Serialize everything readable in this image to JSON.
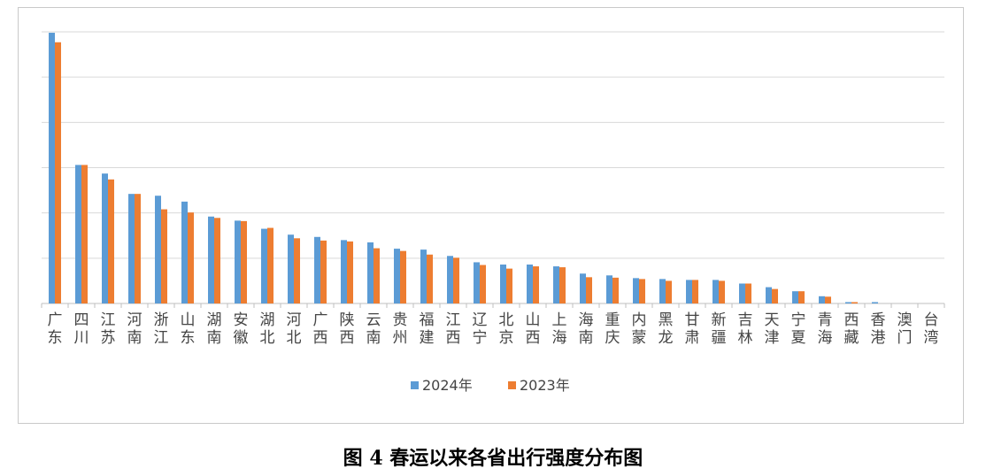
{
  "caption": "图 4  春运以来各省出行强度分布图",
  "chart_data": {
    "type": "bar",
    "title": "",
    "xlabel": "",
    "ylabel": "",
    "ylim": [
      0,
      6
    ],
    "grid": true,
    "legend_position": "bottom",
    "categories": [
      "广东",
      "四川",
      "江苏",
      "河南",
      "浙江",
      "山东",
      "湖南",
      "安徽",
      "湖北",
      "河北",
      "广西",
      "陕西",
      "云南",
      "贵州",
      "福建",
      "江西",
      "辽宁",
      "北京",
      "山西",
      "上海",
      "海南",
      "重庆",
      "内蒙",
      "黑龙",
      "甘肃",
      "新疆",
      "吉林",
      "天津",
      "宁夏",
      "青海",
      "西藏",
      "香港",
      "澳门",
      "台湾"
    ],
    "series": [
      {
        "name": "2024年",
        "color": "#5b9bd5",
        "values": [
          5.98,
          3.06,
          2.87,
          2.42,
          2.38,
          2.25,
          1.92,
          1.83,
          1.65,
          1.52,
          1.47,
          1.4,
          1.35,
          1.21,
          1.19,
          1.05,
          0.91,
          0.86,
          0.86,
          0.82,
          0.66,
          0.62,
          0.56,
          0.54,
          0.52,
          0.52,
          0.44,
          0.36,
          0.27,
          0.16,
          0.03,
          0.03,
          0.0,
          0.0
        ]
      },
      {
        "name": "2023年",
        "color": "#ed7d31",
        "values": [
          5.77,
          3.06,
          2.74,
          2.42,
          2.08,
          2.01,
          1.89,
          1.82,
          1.67,
          1.44,
          1.39,
          1.37,
          1.22,
          1.16,
          1.08,
          1.01,
          0.85,
          0.77,
          0.82,
          0.8,
          0.58,
          0.57,
          0.54,
          0.5,
          0.52,
          0.5,
          0.44,
          0.32,
          0.27,
          0.15,
          0.03,
          0.0,
          0.0,
          0.0
        ]
      }
    ]
  }
}
